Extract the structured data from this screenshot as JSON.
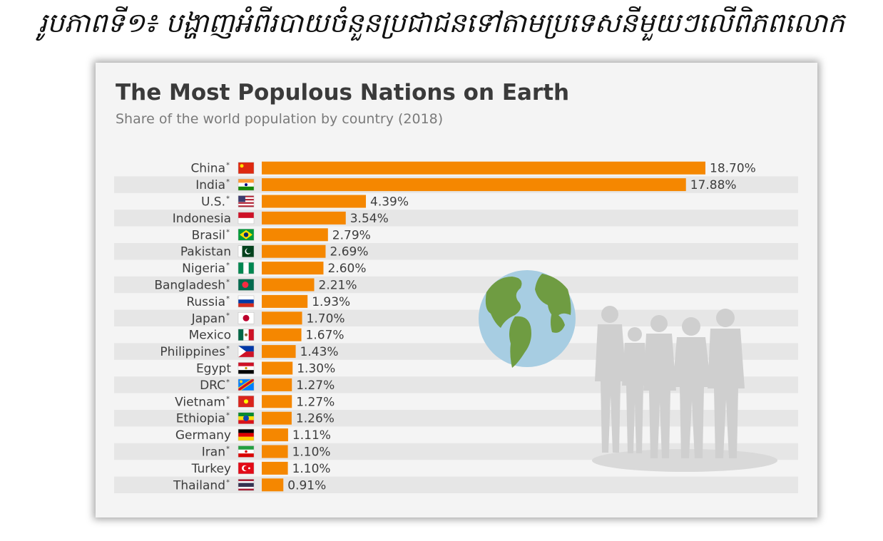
{
  "caption": "រូបភាពទី១៖ បង្ហាញអំពីរបាយចំនួនប្រជាជនទៅតាមប្រទេសនីមួយៗលើពិភពលោក",
  "card": {
    "title": "The Most Populous Nations on Earth",
    "subtitle": "Share of the world population by country (2018)"
  },
  "colors": {
    "bar": "#f58700",
    "row_band": "#e6e6e6",
    "card_bg": "#f4f4f4",
    "text": "#3d3d3d",
    "silhouette": "#cfcfcf"
  },
  "illustration": {
    "globe": "globe-icon",
    "people": "people-silhouette"
  },
  "chart_data": {
    "type": "bar",
    "orientation": "horizontal",
    "title": "The Most Populous Nations on Earth",
    "subtitle": "Share of the world population by country (2018)",
    "unit": "%",
    "categories": [
      "China",
      "India",
      "U.S.",
      "Indonesia",
      "Brasil",
      "Pakistan",
      "Nigeria",
      "Bangladesh",
      "Russia",
      "Japan",
      "Mexico",
      "Philippines",
      "Egypt",
      "DRC",
      "Vietnam",
      "Ethiopia",
      "Germany",
      "Iran",
      "Turkey",
      "Thailand"
    ],
    "asterisk": [
      true,
      true,
      true,
      false,
      true,
      false,
      true,
      true,
      true,
      true,
      false,
      true,
      false,
      true,
      true,
      true,
      false,
      true,
      false,
      true
    ],
    "values": [
      18.7,
      17.88,
      4.39,
      3.54,
      2.79,
      2.69,
      2.6,
      2.21,
      1.93,
      1.7,
      1.67,
      1.43,
      1.3,
      1.27,
      1.27,
      1.26,
      1.11,
      1.1,
      1.1,
      0.91
    ],
    "value_labels": [
      "18.70%",
      "17.88%",
      "4.39%",
      "3.54%",
      "2.79%",
      "2.69%",
      "2.60%",
      "2.21%",
      "1.93%",
      "1.70%",
      "1.67%",
      "1.43%",
      "1.30%",
      "1.27%",
      "1.27%",
      "1.26%",
      "1.11%",
      "1.10%",
      "1.10%",
      "0.91%"
    ],
    "flags": [
      "china-flag-icon",
      "india-flag-icon",
      "us-flag-icon",
      "indonesia-flag-icon",
      "brazil-flag-icon",
      "pakistan-flag-icon",
      "nigeria-flag-icon",
      "bangladesh-flag-icon",
      "russia-flag-icon",
      "japan-flag-icon",
      "mexico-flag-icon",
      "philippines-flag-icon",
      "egypt-flag-icon",
      "drc-flag-icon",
      "vietnam-flag-icon",
      "ethiopia-flag-icon",
      "germany-flag-icon",
      "iran-flag-icon",
      "turkey-flag-icon",
      "thailand-flag-icon"
    ],
    "xlim": [
      0,
      18.7
    ],
    "grid": false,
    "legend": "none"
  }
}
